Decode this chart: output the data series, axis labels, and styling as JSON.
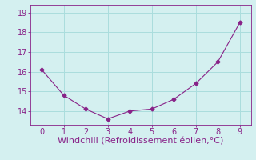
{
  "x": [
    0,
    1,
    2,
    3,
    4,
    5,
    6,
    7,
    8,
    9
  ],
  "y": [
    16.1,
    14.8,
    14.1,
    13.6,
    14.0,
    14.1,
    14.6,
    15.4,
    16.5,
    18.5
  ],
  "line_color": "#882288",
  "marker": "D",
  "marker_size": 2.5,
  "background_color": "#d4f0f0",
  "grid_color": "#aadddd",
  "xlabel": "Windchill (Refroidissement éolien,°C)",
  "xlabel_color": "#882288",
  "tick_color": "#882288",
  "xlim": [
    -0.5,
    9.5
  ],
  "ylim": [
    13.3,
    19.4
  ],
  "yticks": [
    14,
    15,
    16,
    17,
    18,
    19
  ],
  "xticks": [
    0,
    1,
    2,
    3,
    4,
    5,
    6,
    7,
    8,
    9
  ],
  "xlabel_fontsize": 8,
  "tick_fontsize": 7
}
